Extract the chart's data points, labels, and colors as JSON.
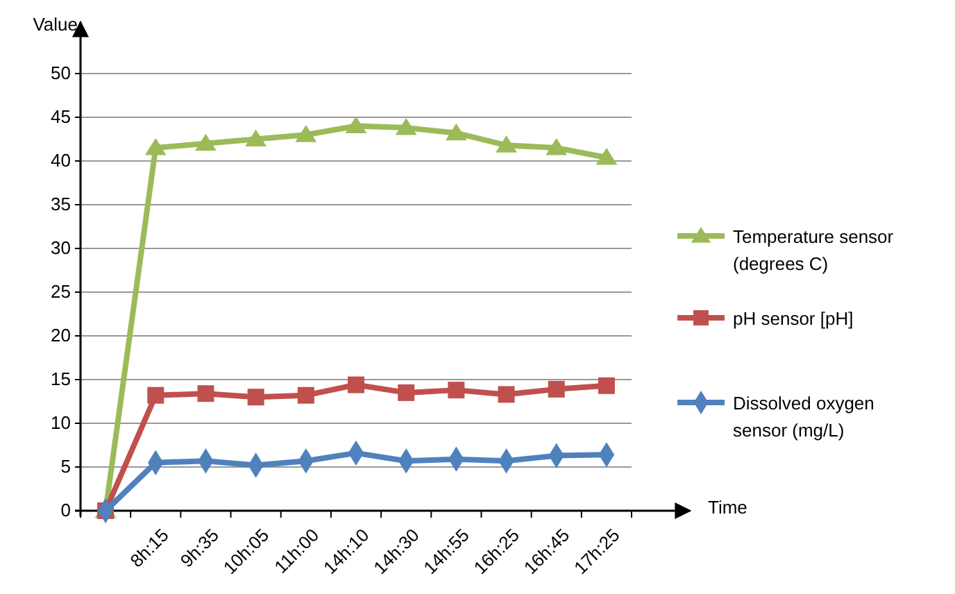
{
  "chart_data": {
    "type": "line",
    "xlabel": "Time",
    "ylabel": "Value",
    "categories": [
      null,
      "8h:15",
      "9h:35",
      "10h:05",
      "11h:00",
      "14h:10",
      "14h:30",
      "14h:55",
      "16h:25",
      "16h:45",
      "17h:25"
    ],
    "series": [
      {
        "name": "Temperature sensor (degrees C)",
        "color": "#9bbb59",
        "marker": "triangle",
        "values": [
          0,
          41.5,
          42,
          42.5,
          43,
          44,
          43.8,
          43.2,
          41.8,
          41.5,
          40.4
        ]
      },
      {
        "name": "pH sensor [pH]",
        "color": "#c0504d",
        "marker": "square",
        "values": [
          0,
          13.2,
          13.4,
          13,
          13.2,
          14.4,
          13.5,
          13.8,
          13.3,
          13.9,
          14.3
        ]
      },
      {
        "name": "Dissolved oxygen sensor (mg/L)",
        "color": "#4f81bd",
        "marker": "diamond",
        "values": [
          0,
          5.5,
          5.7,
          5.2,
          5.7,
          6.6,
          5.7,
          5.9,
          5.7,
          6.3,
          6.4
        ]
      }
    ],
    "ylim": [
      0,
      50
    ],
    "yticks": [
      0,
      5,
      10,
      15,
      20,
      25,
      30,
      35,
      40,
      45,
      50
    ],
    "grid": "y",
    "legend": "right"
  }
}
